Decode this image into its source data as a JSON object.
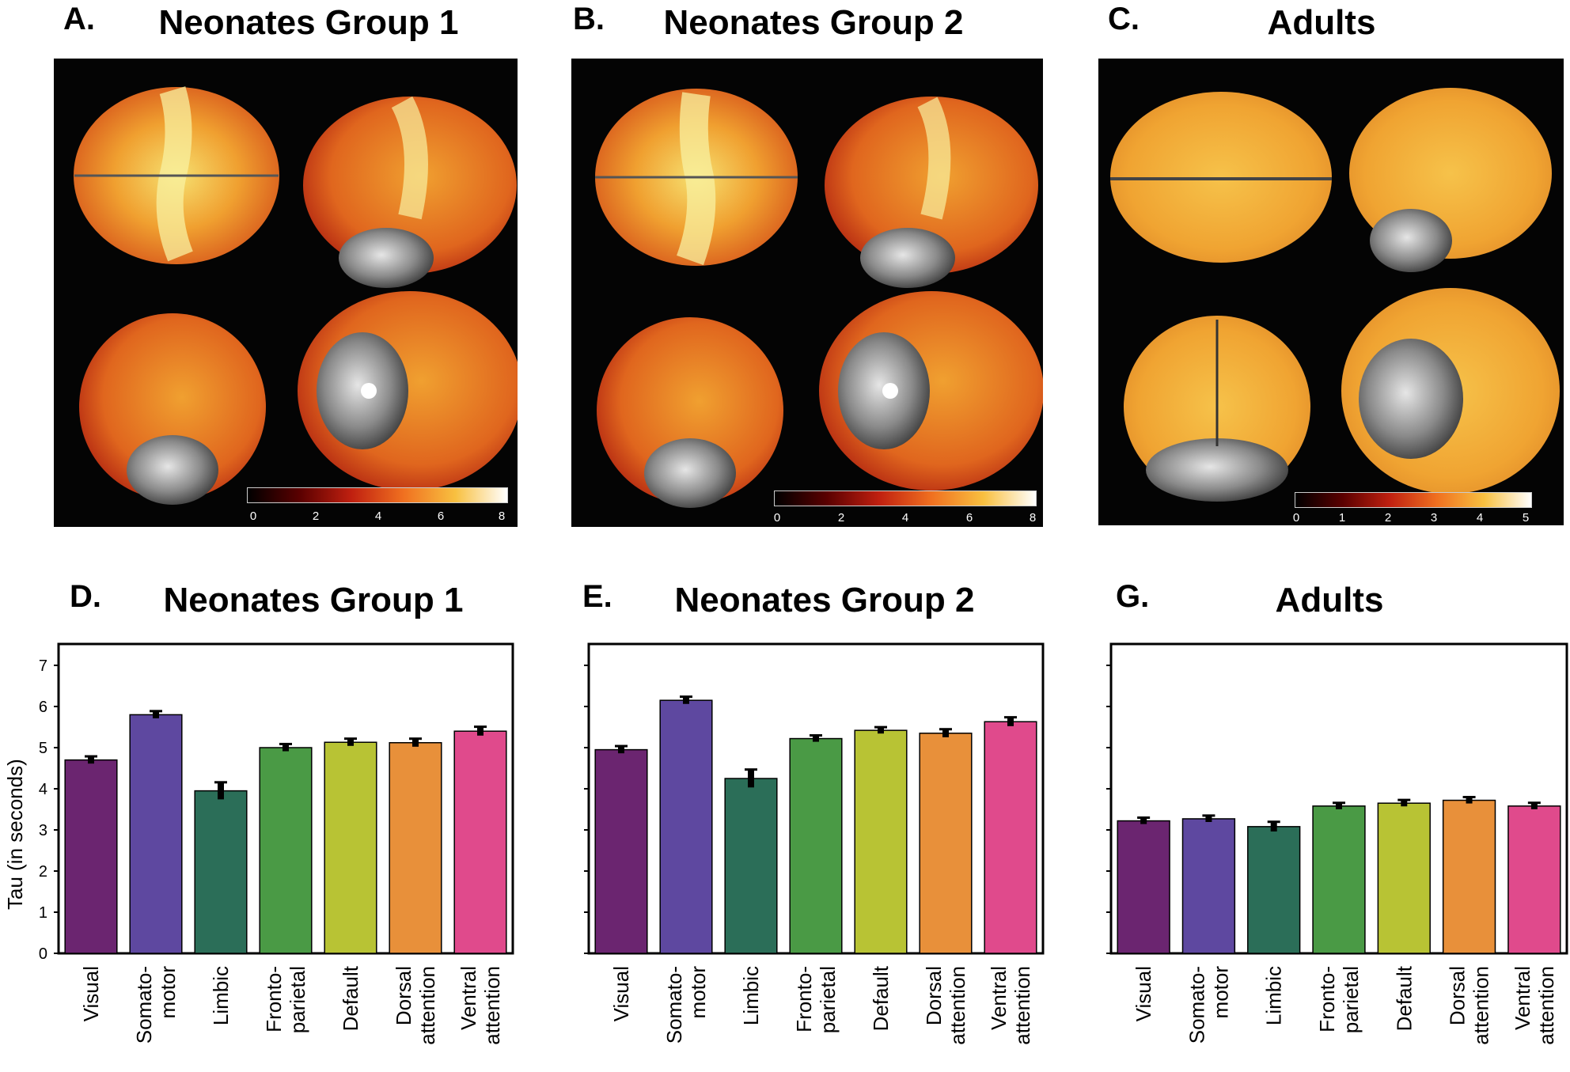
{
  "brain_panels": [
    {
      "letter": "A.",
      "title": "Neonates Group 1",
      "colorbar_ticks": [
        "0",
        "2",
        "4",
        "6",
        "8"
      ]
    },
    {
      "letter": "B.",
      "title": "Neonates Group 2",
      "colorbar_ticks": [
        "0",
        "2",
        "4",
        "6",
        "8"
      ]
    },
    {
      "letter": "C.",
      "title": "Adults",
      "colorbar_ticks": [
        "0",
        "1",
        "2",
        "3",
        "4",
        "5"
      ]
    }
  ],
  "colors": {
    "Visual": "#6b2570",
    "Somatomotor": "#5e48a0",
    "Limbic": "#2b6e58",
    "Frontoparietal": "#4a9a45",
    "Default": "#b8c334",
    "Dorsal attention": "#e8903a",
    "Ventral attention": "#e04a8c"
  },
  "chart_data": [
    {
      "type": "bar",
      "letter": "D.",
      "title": "Neonates Group 1",
      "ylabel": "Tau (in seconds)",
      "ylim": [
        0,
        8
      ],
      "yticks": [
        "0",
        "1",
        "2",
        "3",
        "4",
        "5",
        "6",
        "7"
      ],
      "categories": [
        "Visual",
        "Somato-\nmotor",
        "Limbic",
        "Fronto-\nparietal",
        "Default",
        "Dorsal\nattention",
        "Ventral\nattention"
      ],
      "values": [
        4.7,
        5.8,
        3.95,
        5.0,
        5.13,
        5.12,
        5.4
      ],
      "errors": [
        0.03,
        0.03,
        0.15,
        0.03,
        0.03,
        0.04,
        0.05
      ]
    },
    {
      "type": "bar",
      "letter": "E.",
      "title": "Neonates Group 2",
      "ylabel": "",
      "ylim": [
        0,
        8
      ],
      "yticks": [],
      "categories": [
        "Visual",
        "Somato-\nmotor",
        "Limbic",
        "Fronto-\nparietal",
        "Default",
        "Dorsal\nattention",
        "Ventral\nattention"
      ],
      "values": [
        4.95,
        6.15,
        4.25,
        5.22,
        5.42,
        5.35,
        5.63
      ],
      "errors": [
        0.03,
        0.03,
        0.16,
        0.02,
        0.02,
        0.04,
        0.05
      ]
    },
    {
      "type": "bar",
      "letter": "G.",
      "title": "Adults",
      "ylabel": "",
      "ylim": [
        0,
        8
      ],
      "yticks": [],
      "categories": [
        "Visual",
        "Somato-\nmotor",
        "Limbic",
        "Fronto-\nparietal",
        "Default",
        "Dorsal\nattention",
        "Ventral\nattention"
      ],
      "values": [
        3.22,
        3.27,
        3.08,
        3.58,
        3.65,
        3.72,
        3.58
      ],
      "errors": [
        0.02,
        0.02,
        0.06,
        0.02,
        0.02,
        0.02,
        0.02
      ]
    }
  ]
}
